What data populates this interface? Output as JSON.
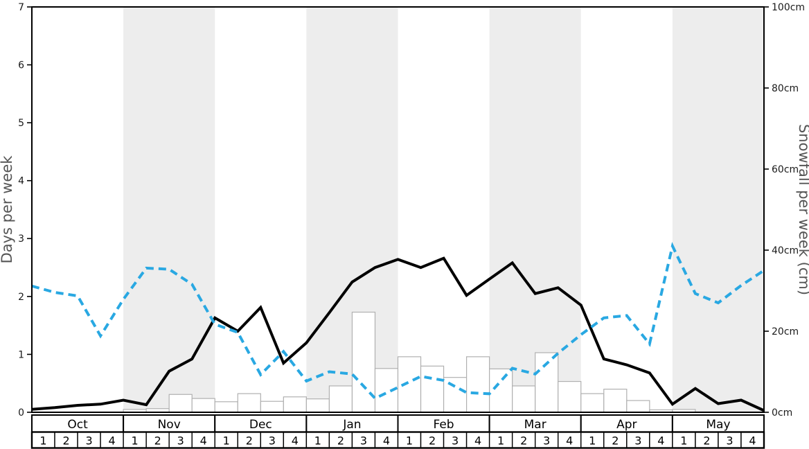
{
  "chart_data": {
    "type": "line+bar",
    "title": "",
    "x_axis": {
      "months": [
        {
          "label": "Oct",
          "shaded": false
        },
        {
          "label": "Nov",
          "shaded": true
        },
        {
          "label": "Dec",
          "shaded": false
        },
        {
          "label": "Jan",
          "shaded": true
        },
        {
          "label": "Feb",
          "shaded": false
        },
        {
          "label": "Mar",
          "shaded": true
        },
        {
          "label": "Apr",
          "shaded": false
        },
        {
          "label": "May",
          "shaded": true
        }
      ],
      "week_labels": [
        "1",
        "2",
        "3",
        "4"
      ],
      "weeks_total": 32
    },
    "left_axis": {
      "label": "Days per week",
      "tick_values": [
        0,
        1,
        2,
        3,
        4,
        5,
        6,
        7
      ],
      "range": [
        0,
        7
      ]
    },
    "right_axis": {
      "label": "Snowfall per week (cm)",
      "tick_values": [
        0,
        20,
        40,
        60,
        80,
        100
      ],
      "tick_labels": [
        "0cm",
        "20cm",
        "40cm",
        "60cm",
        "80cm",
        "100cm"
      ],
      "range": [
        0,
        100
      ]
    },
    "series": [
      {
        "name": "black-solid-line",
        "type": "line",
        "style": "solid",
        "axis": "left",
        "color": "#000000",
        "x_mode": "week-boundaries",
        "values": [
          0.05,
          0.08,
          0.12,
          0.14,
          0.21,
          0.13,
          0.71,
          0.92,
          1.63,
          1.4,
          1.81,
          0.85,
          1.2,
          1.72,
          2.25,
          2.5,
          2.64,
          2.5,
          2.66,
          2.02,
          2.3,
          2.58,
          2.05,
          2.15,
          1.85,
          0.92,
          0.82,
          0.68,
          0.14,
          0.41,
          0.15,
          0.21,
          0.03
        ]
      },
      {
        "name": "blue-dashed-line",
        "type": "line",
        "style": "dashed",
        "axis": "left",
        "color": "#29a8e2",
        "x_mode": "week-boundaries",
        "values": [
          2.18,
          2.07,
          2.01,
          1.32,
          1.95,
          2.49,
          2.47,
          2.21,
          1.52,
          1.38,
          0.65,
          1.05,
          0.54,
          0.7,
          0.66,
          0.24,
          0.43,
          0.62,
          0.55,
          0.34,
          0.32,
          0.76,
          0.66,
          1.02,
          1.34,
          1.63,
          1.67,
          1.18,
          2.87,
          2.05,
          1.89,
          2.19,
          2.45
        ]
      },
      {
        "name": "snowfall-bars",
        "type": "bar",
        "axis": "right",
        "fill": "#ffffff",
        "border": "#b0b0b0",
        "unit": "cm",
        "values": [
          0,
          0,
          0,
          0,
          0.7,
          0.9,
          4.4,
          3.4,
          2.6,
          4.6,
          2.7,
          3.8,
          3.3,
          6.5,
          24.7,
          10.8,
          13.7,
          11.4,
          8.6,
          13.7,
          10.7,
          6.5,
          14.7,
          7.6,
          4.6,
          5.7,
          2.9,
          0.6,
          0.7,
          0,
          0,
          0
        ]
      }
    ],
    "layout": {
      "band_color": "#ededed",
      "background": "#ffffff",
      "grid": false,
      "legend": "none"
    }
  }
}
